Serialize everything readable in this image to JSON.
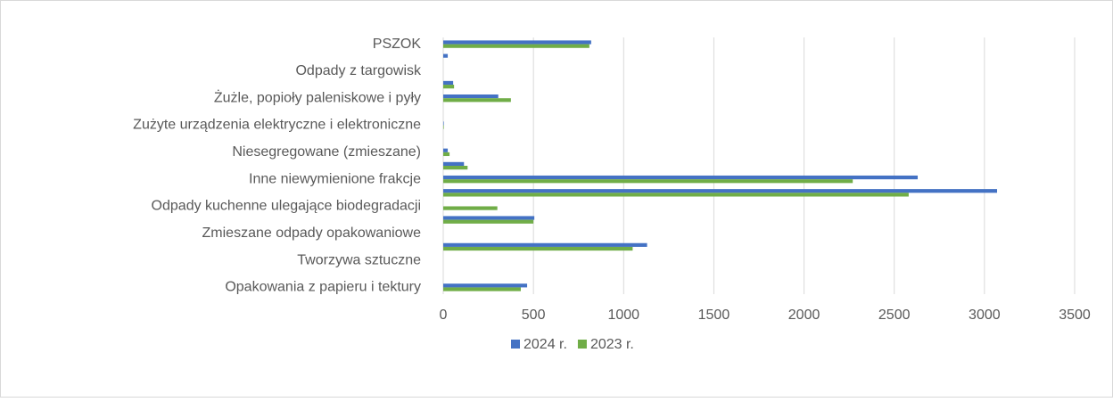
{
  "chart_data": {
    "type": "bar",
    "orientation": "horizontal",
    "categories": [
      "PSZOK",
      null,
      "Odpady z targowisk",
      null,
      "Żużle, popioły paleniskowe i pyły",
      null,
      "Zużyte urządzenia elektryczne i elektroniczne",
      null,
      "Niesegregowane (zmieszane)",
      null,
      "Inne niewymienione frakcje",
      null,
      "Odpady kuchenne ulegające biodegradacji",
      null,
      "Zmieszane odpady opakowaniowe",
      null,
      "Tworzywa sztuczne",
      null,
      "Opakowania z papieru i tektury"
    ],
    "series": [
      {
        "name": "2024 r.",
        "color": "#4472c4",
        "values": [
          820,
          25,
          0,
          55,
          305,
          0,
          3,
          0,
          25,
          115,
          2630,
          3070,
          0,
          505,
          0,
          1130,
          0,
          0,
          465
        ]
      },
      {
        "name": "2023 r.",
        "color": "#70ad47",
        "values": [
          810,
          0,
          0,
          60,
          375,
          0,
          3,
          0,
          35,
          135,
          2270,
          2580,
          300,
          500,
          0,
          1050,
          0,
          0,
          430
        ]
      }
    ],
    "xlim": [
      0,
      3500
    ],
    "xticks": [
      0,
      500,
      1000,
      1500,
      2000,
      2500,
      3000,
      3500
    ],
    "grid": true,
    "legend": "bottom"
  }
}
